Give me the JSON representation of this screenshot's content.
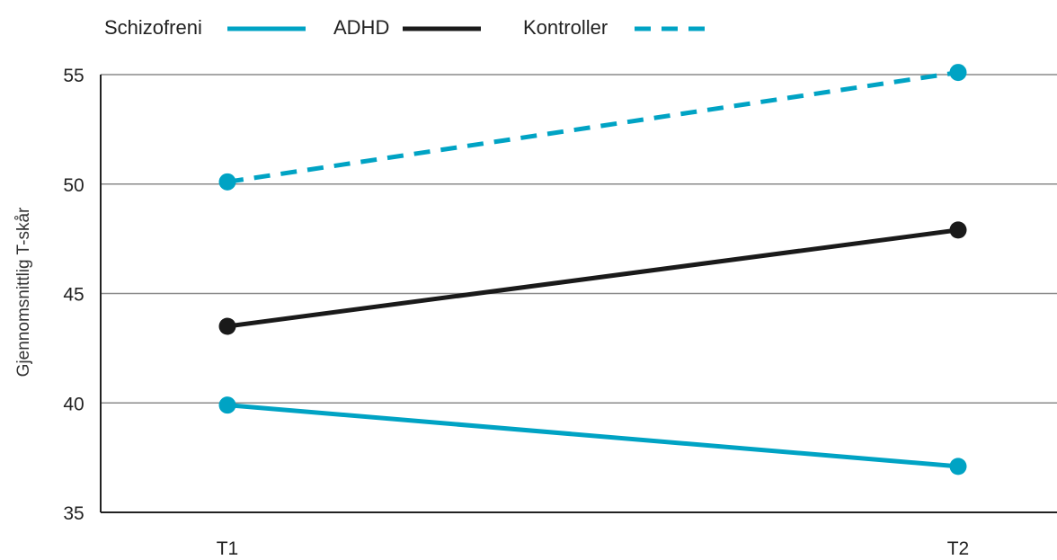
{
  "chart_data": {
    "type": "line",
    "ylabel": "Gjennomsnittlig T-skår",
    "xlabel": "",
    "categories": [
      "T1",
      "T2"
    ],
    "ylim": [
      35,
      55
    ],
    "yticks": [
      35,
      40,
      45,
      50,
      55
    ],
    "grid": "horizontal",
    "legend_position": "top-left",
    "series": [
      {
        "name": "Schizofreni",
        "values": [
          39.9,
          37.1
        ],
        "color": "#00a3c4",
        "line_style": "solid"
      },
      {
        "name": "ADHD",
        "values": [
          43.5,
          47.9
        ],
        "color": "#1a1a1a",
        "line_style": "solid"
      },
      {
        "name": "Kontroller",
        "values": [
          50.1,
          55.1
        ],
        "color": "#00a3c4",
        "line_style": "dashed"
      }
    ]
  }
}
